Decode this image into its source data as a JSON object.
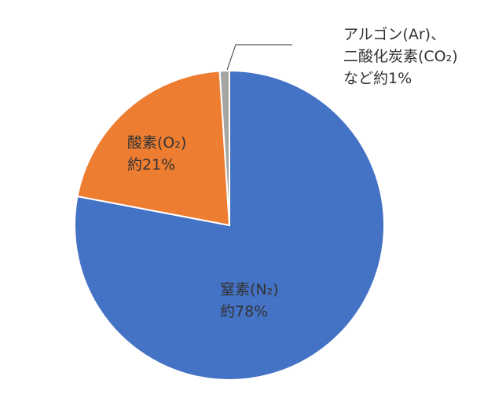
{
  "chart_data": {
    "type": "pie",
    "categories": [
      "窒素(N₂)",
      "酸素(O₂)",
      [
        "アルゴン(Ar)、",
        "二酸化炭素(CO₂)など"
      ]
    ],
    "values": [
      78,
      21,
      1
    ],
    "value_labels": [
      "約78%",
      "約21%",
      "約1%"
    ],
    "colors": [
      "#4472c4",
      "#ed7d31",
      "#a5a5a5"
    ]
  }
}
